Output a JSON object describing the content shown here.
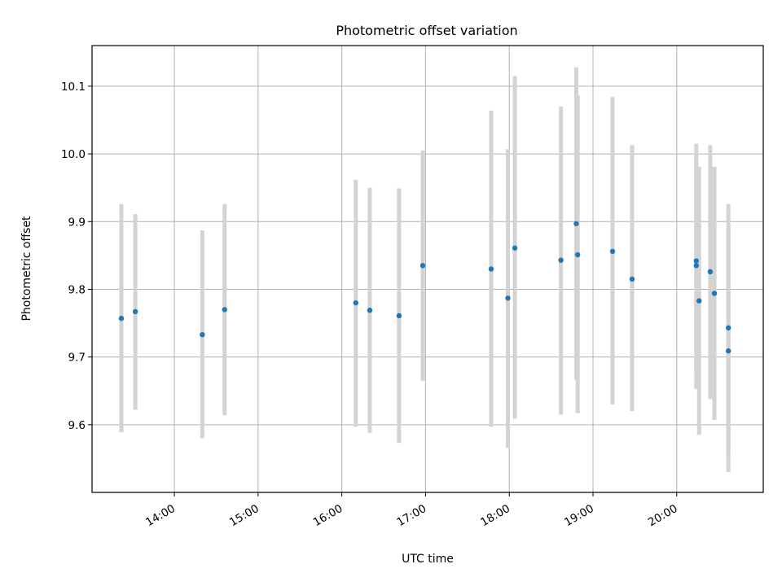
{
  "chart_data": {
    "type": "scatter",
    "title": "Photometric offset variation",
    "xlabel": "UTC time",
    "ylabel": "Photometric offset",
    "x_ticks": [
      "14:00",
      "15:00",
      "16:00",
      "17:00",
      "18:00",
      "19:00",
      "20:00"
    ],
    "y_ticks": [
      "9.6",
      "9.7",
      "9.8",
      "9.9",
      "10.0",
      "10.1"
    ],
    "xlim": [
      "13:01",
      "21:02"
    ],
    "ylim": [
      9.5,
      10.16
    ],
    "grid": true,
    "point_color": "#1f77b4",
    "errorbar_color": "#d3d3d3",
    "points": [
      {
        "x": "13:22",
        "y": 9.757,
        "ylow": 9.589,
        "yhigh": 9.926
      },
      {
        "x": "13:32",
        "y": 9.767,
        "ylow": 9.622,
        "yhigh": 9.911
      },
      {
        "x": "14:20",
        "y": 9.733,
        "ylow": 9.58,
        "yhigh": 9.887
      },
      {
        "x": "14:36",
        "y": 9.77,
        "ylow": 9.614,
        "yhigh": 9.926
      },
      {
        "x": "16:10",
        "y": 9.78,
        "ylow": 9.597,
        "yhigh": 9.962
      },
      {
        "x": "16:20",
        "y": 9.769,
        "ylow": 9.588,
        "yhigh": 9.95
      },
      {
        "x": "16:41",
        "y": 9.761,
        "ylow": 9.573,
        "yhigh": 9.949
      },
      {
        "x": "16:58",
        "y": 9.835,
        "ylow": 9.665,
        "yhigh": 10.005
      },
      {
        "x": "17:47",
        "y": 9.83,
        "ylow": 9.597,
        "yhigh": 10.064
      },
      {
        "x": "17:59",
        "y": 9.787,
        "ylow": 9.566,
        "yhigh": 10.007
      },
      {
        "x": "18:04",
        "y": 9.861,
        "ylow": 9.609,
        "yhigh": 10.115
      },
      {
        "x": "18:37",
        "y": 9.843,
        "ylow": 9.615,
        "yhigh": 10.07
      },
      {
        "x": "18:48",
        "y": 9.897,
        "ylow": 9.666,
        "yhigh": 10.128
      },
      {
        "x": "18:49",
        "y": 9.851,
        "ylow": 9.617,
        "yhigh": 10.087
      },
      {
        "x": "19:14",
        "y": 9.856,
        "ylow": 9.63,
        "yhigh": 10.084
      },
      {
        "x": "19:28",
        "y": 9.815,
        "ylow": 9.62,
        "yhigh": 10.013
      },
      {
        "x": "20:14",
        "y": 9.842,
        "ylow": 9.653,
        "yhigh": 10.015
      },
      {
        "x": "20:14",
        "y": 9.835,
        "ylow": 9.68,
        "yhigh": 9.99
      },
      {
        "x": "20:16",
        "y": 9.783,
        "ylow": 9.585,
        "yhigh": 9.981
      },
      {
        "x": "20:24",
        "y": 9.826,
        "ylow": 9.638,
        "yhigh": 10.013
      },
      {
        "x": "20:27",
        "y": 9.794,
        "ylow": 9.607,
        "yhigh": 9.981
      },
      {
        "x": "20:37",
        "y": 9.743,
        "ylow": 9.559,
        "yhigh": 9.926
      },
      {
        "x": "20:37",
        "y": 9.709,
        "ylow": 9.53,
        "yhigh": 9.889
      }
    ]
  }
}
